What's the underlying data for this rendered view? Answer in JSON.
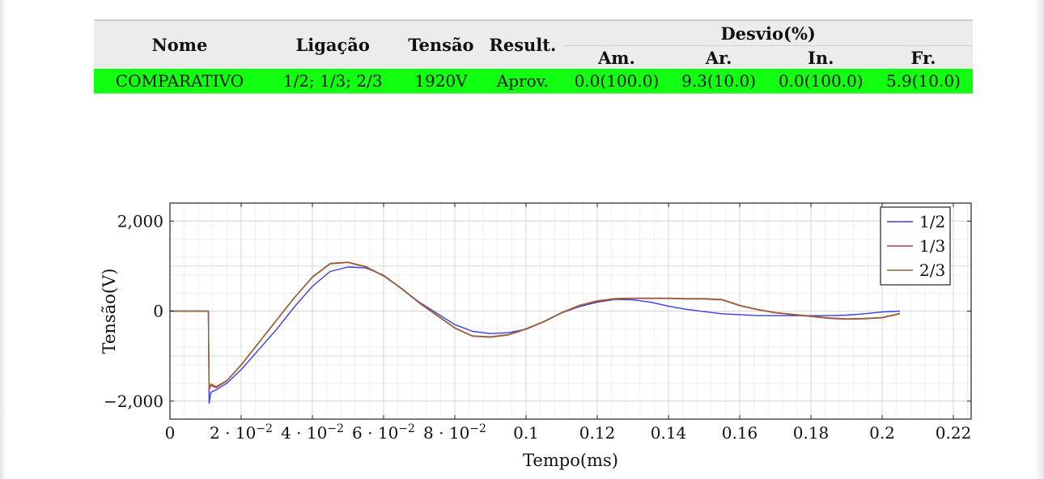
{
  "table": {
    "headers": {
      "nome": "Nome",
      "ligacao": "Ligação",
      "tensao": "Tensão",
      "result": "Result.",
      "desvio": "Desvio(%)",
      "am": "Am.",
      "ar": "Ar.",
      "in": "In.",
      "fr": "Fr."
    },
    "row": {
      "nome": "COMPARATIVO",
      "ligacao": "1/2; 1/3; 2/3",
      "tensao": "1920V",
      "result": "Aprov.",
      "am": "0.0(100.0)",
      "ar": "9.3(10.0)",
      "in": "0.0(100.0)",
      "fr": "5.9(10.0)"
    },
    "row_color": "#12ff12"
  },
  "chart_data": {
    "type": "line",
    "xlabel": "Tempo(ms)",
    "ylabel": "Tensão(V)",
    "xlim": [
      0,
      0.225
    ],
    "ylim": [
      -2400,
      2400
    ],
    "xticks": [
      {
        "v": 0,
        "label": "0"
      },
      {
        "v": 0.02,
        "label": "2 · 10",
        "exp": "−2"
      },
      {
        "v": 0.04,
        "label": "4 · 10",
        "exp": "−2"
      },
      {
        "v": 0.06,
        "label": "6 · 10",
        "exp": "−2"
      },
      {
        "v": 0.08,
        "label": "8 · 10",
        "exp": "−2"
      },
      {
        "v": 0.1,
        "label": "0.1"
      },
      {
        "v": 0.12,
        "label": "0.12"
      },
      {
        "v": 0.14,
        "label": "0.14"
      },
      {
        "v": 0.16,
        "label": "0.16"
      },
      {
        "v": 0.18,
        "label": "0.18"
      },
      {
        "v": 0.2,
        "label": "0.2"
      },
      {
        "v": 0.22,
        "label": "0.22"
      }
    ],
    "yticks": [
      {
        "v": 2000,
        "label": "2,000"
      },
      {
        "v": 0,
        "label": "0"
      },
      {
        "v": -2000,
        "label": "−2,000"
      }
    ],
    "grid": true,
    "legend_position": "top-right",
    "series": [
      {
        "name": "1/2",
        "color": "#3a3aee",
        "points": [
          [
            0,
            0
          ],
          [
            0.01,
            0
          ],
          [
            0.0108,
            0
          ],
          [
            0.011,
            -2050
          ],
          [
            0.0115,
            -1800
          ],
          [
            0.013,
            -1750
          ],
          [
            0.016,
            -1600
          ],
          [
            0.02,
            -1300
          ],
          [
            0.025,
            -850
          ],
          [
            0.03,
            -400
          ],
          [
            0.035,
            100
          ],
          [
            0.04,
            550
          ],
          [
            0.045,
            880
          ],
          [
            0.05,
            980
          ],
          [
            0.055,
            960
          ],
          [
            0.06,
            800
          ],
          [
            0.065,
            500
          ],
          [
            0.07,
            200
          ],
          [
            0.075,
            -50
          ],
          [
            0.08,
            -300
          ],
          [
            0.085,
            -450
          ],
          [
            0.09,
            -500
          ],
          [
            0.095,
            -480
          ],
          [
            0.1,
            -400
          ],
          [
            0.105,
            -230
          ],
          [
            0.11,
            -40
          ],
          [
            0.115,
            100
          ],
          [
            0.12,
            200
          ],
          [
            0.125,
            260
          ],
          [
            0.13,
            250
          ],
          [
            0.135,
            200
          ],
          [
            0.14,
            110
          ],
          [
            0.145,
            40
          ],
          [
            0.15,
            -10
          ],
          [
            0.155,
            -60
          ],
          [
            0.16,
            -80
          ],
          [
            0.165,
            -100
          ],
          [
            0.17,
            -100
          ],
          [
            0.175,
            -100
          ],
          [
            0.18,
            -100
          ],
          [
            0.185,
            -100
          ],
          [
            0.19,
            -90
          ],
          [
            0.195,
            -60
          ],
          [
            0.2,
            -20
          ],
          [
            0.205,
            0
          ]
        ]
      },
      {
        "name": "1/3",
        "color": "#cc3333",
        "points": [
          [
            0,
            0
          ],
          [
            0.01,
            0
          ],
          [
            0.0108,
            0
          ],
          [
            0.011,
            -1750
          ],
          [
            0.0115,
            -1650
          ],
          [
            0.013,
            -1700
          ],
          [
            0.016,
            -1550
          ],
          [
            0.02,
            -1200
          ],
          [
            0.025,
            -700
          ],
          [
            0.03,
            -200
          ],
          [
            0.035,
            300
          ],
          [
            0.04,
            750
          ],
          [
            0.045,
            1050
          ],
          [
            0.05,
            1080
          ],
          [
            0.055,
            980
          ],
          [
            0.06,
            780
          ],
          [
            0.065,
            500
          ],
          [
            0.07,
            180
          ],
          [
            0.075,
            -100
          ],
          [
            0.08,
            -380
          ],
          [
            0.085,
            -560
          ],
          [
            0.09,
            -580
          ],
          [
            0.095,
            -530
          ],
          [
            0.1,
            -400
          ],
          [
            0.105,
            -240
          ],
          [
            0.11,
            -40
          ],
          [
            0.115,
            120
          ],
          [
            0.12,
            220
          ],
          [
            0.125,
            270
          ],
          [
            0.13,
            280
          ],
          [
            0.135,
            280
          ],
          [
            0.14,
            280
          ],
          [
            0.145,
            270
          ],
          [
            0.15,
            270
          ],
          [
            0.155,
            250
          ],
          [
            0.16,
            120
          ],
          [
            0.165,
            30
          ],
          [
            0.17,
            -40
          ],
          [
            0.175,
            -80
          ],
          [
            0.18,
            -120
          ],
          [
            0.185,
            -160
          ],
          [
            0.19,
            -180
          ],
          [
            0.195,
            -170
          ],
          [
            0.2,
            -150
          ],
          [
            0.205,
            -60
          ]
        ]
      },
      {
        "name": "2/3",
        "color": "#8a6a3a",
        "points": [
          [
            0,
            0
          ],
          [
            0.01,
            0
          ],
          [
            0.0108,
            0
          ],
          [
            0.011,
            -1700
          ],
          [
            0.0115,
            -1620
          ],
          [
            0.013,
            -1680
          ],
          [
            0.016,
            -1540
          ],
          [
            0.02,
            -1190
          ],
          [
            0.025,
            -690
          ],
          [
            0.03,
            -190
          ],
          [
            0.035,
            310
          ],
          [
            0.04,
            760
          ],
          [
            0.045,
            1060
          ],
          [
            0.05,
            1090
          ],
          [
            0.055,
            990
          ],
          [
            0.06,
            790
          ],
          [
            0.065,
            510
          ],
          [
            0.07,
            190
          ],
          [
            0.075,
            -90
          ],
          [
            0.08,
            -370
          ],
          [
            0.085,
            -550
          ],
          [
            0.09,
            -570
          ],
          [
            0.095,
            -520
          ],
          [
            0.1,
            -390
          ],
          [
            0.105,
            -230
          ],
          [
            0.11,
            -30
          ],
          [
            0.115,
            130
          ],
          [
            0.12,
            230
          ],
          [
            0.125,
            280
          ],
          [
            0.13,
            290
          ],
          [
            0.135,
            290
          ],
          [
            0.14,
            290
          ],
          [
            0.145,
            280
          ],
          [
            0.15,
            280
          ],
          [
            0.155,
            260
          ],
          [
            0.16,
            130
          ],
          [
            0.165,
            40
          ],
          [
            0.17,
            -30
          ],
          [
            0.175,
            -70
          ],
          [
            0.18,
            -110
          ],
          [
            0.185,
            -150
          ],
          [
            0.19,
            -170
          ],
          [
            0.195,
            -160
          ],
          [
            0.2,
            -140
          ],
          [
            0.205,
            -50
          ]
        ]
      }
    ]
  }
}
